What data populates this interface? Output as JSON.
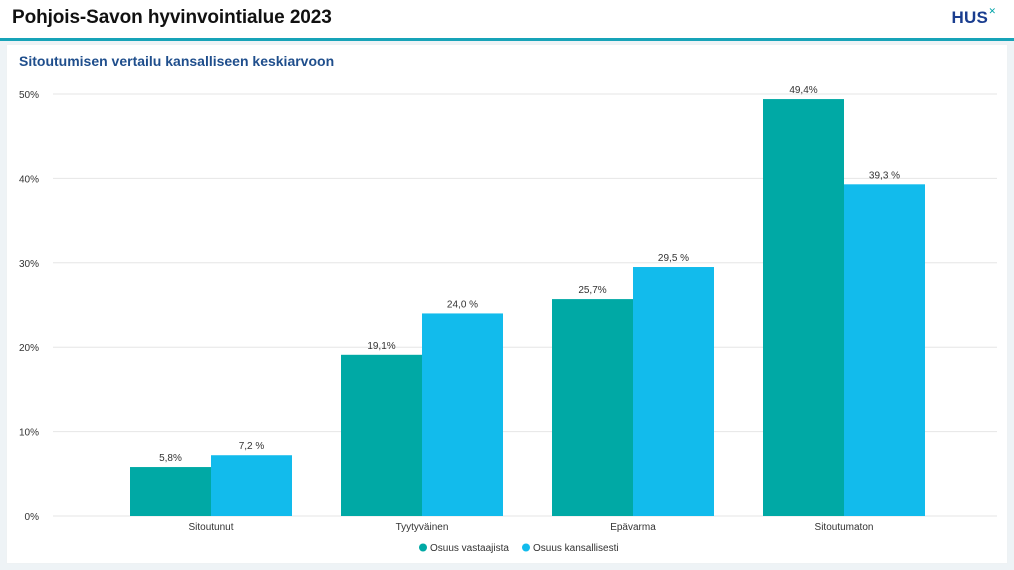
{
  "header": {
    "title": "Pohjois-Savon hyvinvointialue 2023",
    "logo_text": "HUS",
    "logo_mark": "✕"
  },
  "colors": {
    "series_1": "#00a9a5",
    "series_2": "#12bbec",
    "header_line": "#17a3b8",
    "chart_title": "#1f4e8c"
  },
  "chart_data": {
    "type": "bar",
    "title": "Sitoutumisen vertailu kansalliseen keskiarvoon",
    "xlabel": "",
    "ylabel": "",
    "categories": [
      "Sitoutunut",
      "Tyytyväinen",
      "Epävarma",
      "Sitoutumaton"
    ],
    "series": [
      {
        "name": "Osuus vastaajista",
        "values": [
          5.8,
          19.1,
          25.7,
          49.4
        ],
        "labels": [
          "5,8%",
          "19,1%",
          "25,7%",
          "49,4%"
        ]
      },
      {
        "name": "Osuus kansallisesti",
        "values": [
          7.2,
          24.0,
          29.5,
          39.3
        ],
        "labels": [
          "7,2 %",
          "24,0 %",
          "29,5 %",
          "39,3 %"
        ]
      }
    ],
    "ylim": [
      0,
      50
    ],
    "yticks": [
      0,
      10,
      20,
      30,
      40,
      50
    ],
    "ytick_labels": [
      "0%",
      "10%",
      "20%",
      "30%",
      "40%",
      "50%"
    ],
    "grid": true,
    "legend_position": "bottom-center"
  }
}
